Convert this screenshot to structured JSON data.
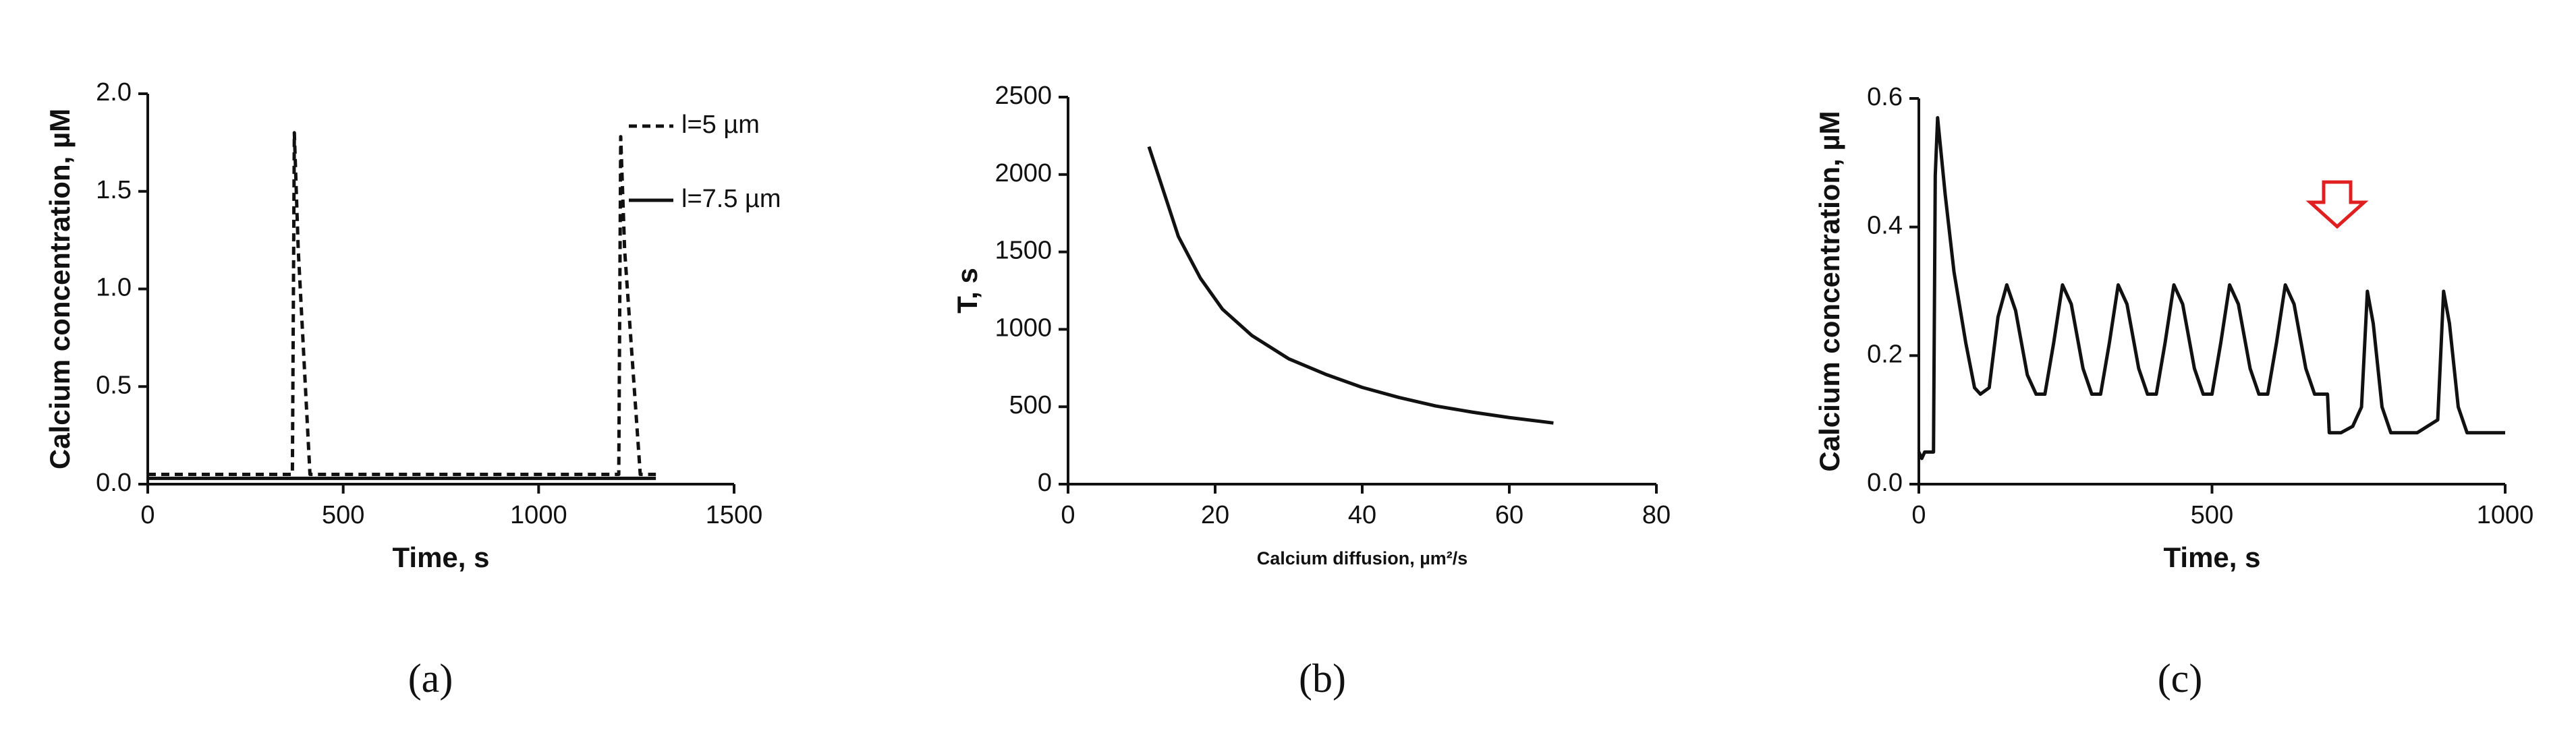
{
  "chart_data": [
    {
      "type": "line",
      "panel_label": "(a)",
      "x_label": "Time, s",
      "y_label": "Calcium concentration, µM",
      "x": [
        0,
        370,
        375,
        385,
        415,
        1205,
        1210,
        1220,
        1260,
        1300
      ],
      "series": [
        {
          "name": "l=5 µm",
          "color": "#111111",
          "style": "dashed",
          "values": [
            0.05,
            0.05,
            1.8,
            1.2,
            0.05,
            0.05,
            1.78,
            1.2,
            0.05,
            0.05
          ]
        },
        {
          "name": "l=7.5 µm",
          "color": "#111111",
          "style": "solid",
          "values": [
            0.03,
            0.03,
            0.03,
            0.03,
            0.03,
            0.03,
            0.03,
            0.03,
            0.03,
            0.03
          ]
        }
      ],
      "xlim": [
        0,
        1500
      ],
      "xticks": [
        0,
        500,
        1000,
        1500
      ],
      "ylim": [
        0,
        2
      ],
      "yticks": [
        {
          "value": 0,
          "label": "0.0"
        },
        0.5,
        {
          "value": 1,
          "label": "1.0"
        },
        1.5,
        {
          "value": 2,
          "label": "2.0"
        }
      ],
      "legend": "top-right"
    },
    {
      "type": "line",
      "panel_label": "(b)",
      "x_label": "Calcium diffusion, µm²/s",
      "y_label": "T, s",
      "x": [
        11,
        15,
        18,
        21,
        25,
        30,
        35,
        40,
        45,
        50,
        55,
        60,
        66
      ],
      "values": [
        2180,
        1600,
        1330,
        1130,
        960,
        810,
        710,
        625,
        560,
        505,
        465,
        430,
        395
      ],
      "color": "#111111",
      "xlim": [
        0,
        80
      ],
      "xticks": [
        0,
        20,
        40,
        60,
        80
      ],
      "ylim": [
        0,
        2500
      ],
      "yticks": [
        0,
        500,
        1000,
        1500,
        2000,
        2500
      ]
    },
    {
      "type": "line",
      "panel_label": "(c)",
      "x_label": "Time, s",
      "y_label": "Calcium concentration, µM",
      "x": [
        0,
        5,
        10,
        25,
        28,
        32,
        45,
        60,
        80,
        95,
        105,
        120,
        135,
        150,
        165,
        185,
        200,
        215,
        230,
        245,
        260,
        280,
        295,
        310,
        325,
        340,
        355,
        375,
        390,
        405,
        420,
        435,
        450,
        470,
        485,
        500,
        515,
        530,
        545,
        565,
        580,
        595,
        610,
        625,
        640,
        660,
        675,
        690,
        697,
        700,
        720,
        740,
        755,
        765,
        775,
        790,
        805,
        850,
        885,
        895,
        905,
        920,
        935,
        1000
      ],
      "values": [
        0.05,
        0.04,
        0.05,
        0.05,
        0.48,
        0.57,
        0.45,
        0.33,
        0.22,
        0.15,
        0.14,
        0.15,
        0.26,
        0.31,
        0.27,
        0.17,
        0.14,
        0.14,
        0.22,
        0.31,
        0.28,
        0.18,
        0.14,
        0.14,
        0.22,
        0.31,
        0.28,
        0.18,
        0.14,
        0.14,
        0.22,
        0.31,
        0.28,
        0.18,
        0.14,
        0.14,
        0.22,
        0.31,
        0.28,
        0.18,
        0.14,
        0.14,
        0.22,
        0.31,
        0.28,
        0.18,
        0.14,
        0.14,
        0.14,
        0.08,
        0.08,
        0.09,
        0.12,
        0.3,
        0.25,
        0.12,
        0.08,
        0.08,
        0.1,
        0.3,
        0.25,
        0.12,
        0.08,
        0.08
      ],
      "color": "#111111",
      "xlim": [
        0,
        1000
      ],
      "xticks": [
        0,
        500,
        1000
      ],
      "ylim": [
        0,
        0.6
      ],
      "yticks": [
        {
          "value": 0,
          "label": "0.0"
        },
        0.2,
        0.4,
        0.6
      ]
    }
  ]
}
